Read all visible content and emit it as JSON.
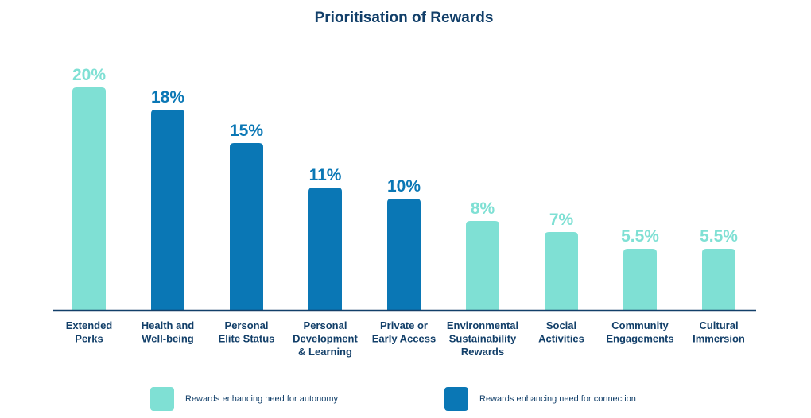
{
  "colors": {
    "autonomy": "#7fe0d4",
    "connection": "#0a77b5",
    "autonomy_label": "#7fe0d4",
    "connection_label": "#0a77b5",
    "axis": "#123f69",
    "title": "#123f69"
  },
  "chart_data": {
    "type": "bar",
    "title": "Prioritisation of Rewards",
    "xlabel": "",
    "ylabel": "",
    "ylim": [
      0,
      20
    ],
    "grid": false,
    "legend_position": "bottom",
    "categories": [
      "Extended Perks",
      "Health and Well-being",
      "Personal Elite Status",
      "Personal Development & Learning",
      "Private or Early Access",
      "Environmental Sustainability Rewards",
      "Social Activities",
      "Community Engagements",
      "Cultural Immersion"
    ],
    "category_lines": [
      [
        "Extended",
        "Perks"
      ],
      [
        "Health and",
        "Well-being"
      ],
      [
        "Personal",
        "Elite Status"
      ],
      [
        "Personal",
        "Development",
        "& Learning"
      ],
      [
        "Private or",
        "Early Access"
      ],
      [
        "Environmental",
        "Sustainability",
        "Rewards"
      ],
      [
        "Social",
        "Activities"
      ],
      [
        "Community",
        "Engagements"
      ],
      [
        "Cultural",
        "Immersion"
      ]
    ],
    "values": [
      20,
      18,
      15,
      11,
      10,
      8,
      7,
      5.5,
      5.5
    ],
    "value_labels": [
      "20%",
      "18%",
      "15%",
      "11%",
      "10%",
      "8%",
      "7%",
      "5.5%",
      "5.5%"
    ],
    "groups": [
      "autonomy",
      "connection",
      "connection",
      "connection",
      "connection",
      "autonomy",
      "autonomy",
      "autonomy",
      "autonomy"
    ],
    "legend": [
      {
        "group": "autonomy",
        "label": "Rewards enhancing need for autonomy"
      },
      {
        "group": "connection",
        "label": "Rewards enhancing need for connection"
      }
    ]
  }
}
